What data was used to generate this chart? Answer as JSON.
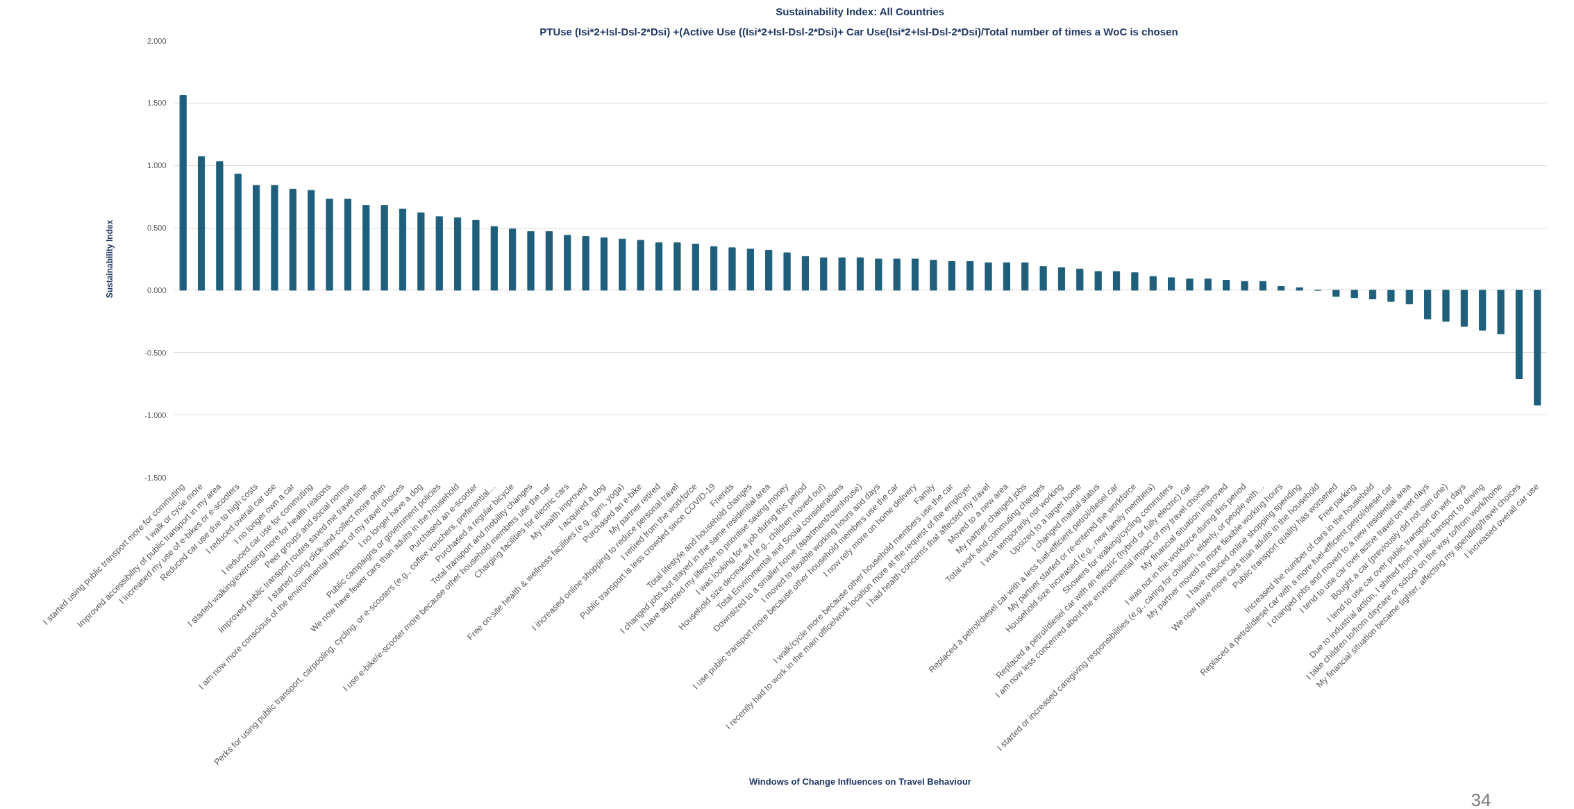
{
  "chart_data": {
    "type": "bar",
    "title": "Sustainability Index: All Countries",
    "subtitle": "PTUse (Isi*2+Isl-Dsl-2*Dsi) +(Active Use  ((Isi*2+Isl-Dsl-2*Dsi)+ Car Use(Isi*2+Isl-Dsl-2*Dsi)/Total number of times a WoC is chosen",
    "xlabel": "Windows of Change Influences on Travel Behaviour",
    "ylabel": "Sustainability Index",
    "annotations": [
      "34"
    ],
    "categories": [
      "I started using public transport more for commuting",
      "I walk or cycle more",
      "Improved accessibility of public transport in my area",
      "I increased my use of e-bikes or e-scooters",
      "Reduced car use due to high costs",
      "I reduced overall car use",
      "I no longer own a car",
      "I reduced car use for commuting",
      "I started walking/exercising more for health reasons",
      "Peer groups and social norms",
      "Improved public transport routes saved me travel time",
      "I started using click-and-collect more often",
      "I am now more conscious of the environmental impact of my travel choices",
      "I no longer have a dog",
      "Public campaigns or government policies",
      "We now have fewer cars than adults in the household",
      "Purchased an e-scooter",
      "Perks for using public transport, carpooling, cycling, or e-scooters (e.g., coffee vouchers, preferential…",
      "Purchased a regular bicycle",
      "Total transport and mobility changes",
      "I use e-bike/e-scooter more because other household members use the car",
      "Charging facilities for electric cars",
      "My health improved",
      "I acquired a dog",
      "Free on-site health & wellness facilities (e.g., gym, yoga)",
      "Purchased an e-bike",
      "My partner retired",
      "I increased online shopping to reduce personal travel",
      "I retired from the workforce",
      "Public transport is less crowded since COVID-19",
      "Friends",
      "Total lifestyle and household changes",
      "I changed jobs but stayed in the same residential area",
      "I have adjusted my lifestyle to prioritise saving money",
      "I was looking for a job during this period",
      "Household size decreased (e.g., children moved out)",
      "Total Envirinmental and Social considerations",
      "Downsized to a smaller home (apartment/townhouse)",
      "I moved to flexible working hours and days",
      "I use public transport more because other household members use the car",
      "I now rely more on home delivery",
      "Family",
      "I walk/cycle more because other household members use the car",
      "I recently had to work in the main office/work location more at the request of the employer",
      "I had health concerns that affected my travel",
      "Moved to a new area",
      "My partner changed jobs",
      "Total work and commuting changes",
      "I was temporarily not working",
      "Upsized to a larger home",
      "I changed marital status",
      "Replaced a petrol/diesel car with a less fuel-efficient petrol/diesel car",
      "My partner started or re-entered the workforce",
      "Household size increased (e.g., new family members)",
      "Showers for walking/cycling commuters",
      "Replaced a petrol/diesel car with an electric (hybrid or fully electric) car",
      "I am now less concerned about the environmental impact of my travel choices",
      "My financial situation improved",
      "I was not in the workforce during this period",
      "I started or increased caregiving responsibilities (e.g., caring for children, elderly, or people with…",
      "My partner moved to more flexible working hours",
      "I have reduced online shopping spending",
      "We now have more cars than adults in the household",
      "Public transport quality has worsened",
      "Free parking",
      "Increased the number of cars in the household",
      "Replaced a petrol/diesel car with a more fuel-efficient petrol/diesel car",
      "I changed jobs and moved to a new residential area",
      "I tend to use car over active travel on wet days",
      "Bought a car (previously did not own one)",
      "I tend to use car over public transport on wet days",
      "Due to industrial action, I shifted from public transport to driving",
      "I take children to/from daycare or school on the way to/from work/home",
      "My financial situation became tighter, affecting my spending/travel choices",
      "I increased overall car use"
    ],
    "values": [
      1.56,
      1.07,
      1.03,
      0.93,
      0.84,
      0.84,
      0.81,
      0.8,
      0.73,
      0.73,
      0.68,
      0.68,
      0.65,
      0.62,
      0.59,
      0.58,
      0.56,
      0.51,
      0.49,
      0.47,
      0.47,
      0.44,
      0.43,
      0.42,
      0.41,
      0.4,
      0.38,
      0.38,
      0.37,
      0.35,
      0.34,
      0.33,
      0.32,
      0.3,
      0.27,
      0.26,
      0.26,
      0.26,
      0.25,
      0.25,
      0.25,
      0.24,
      0.23,
      0.23,
      0.22,
      0.22,
      0.22,
      0.19,
      0.18,
      0.17,
      0.15,
      0.15,
      0.14,
      0.11,
      0.1,
      0.09,
      0.09,
      0.08,
      0.07,
      0.07,
      0.03,
      0.02,
      0.0,
      -0.05,
      -0.06,
      -0.07,
      -0.09,
      -0.11,
      -0.23,
      -0.25,
      -0.29,
      -0.32,
      -0.35,
      -0.71,
      -0.92
    ],
    "color": "#1f5f7b",
    "ylim": [
      -1.5,
      2.0
    ],
    "yticks": [
      {
        "value": -1.5,
        "label": "-1.500"
      },
      {
        "value": -1.0,
        "label": "-1.000"
      },
      {
        "value": -0.5,
        "label": "-0.500"
      },
      {
        "value": 0,
        "label": "0.000"
      },
      {
        "value": 0.5,
        "label": "0.500"
      },
      {
        "value": 1.0,
        "label": "1.000"
      },
      {
        "value": 1.5,
        "label": "1.500"
      },
      {
        "value": 2.0,
        "label": "2.000"
      }
    ],
    "grid": "y"
  }
}
